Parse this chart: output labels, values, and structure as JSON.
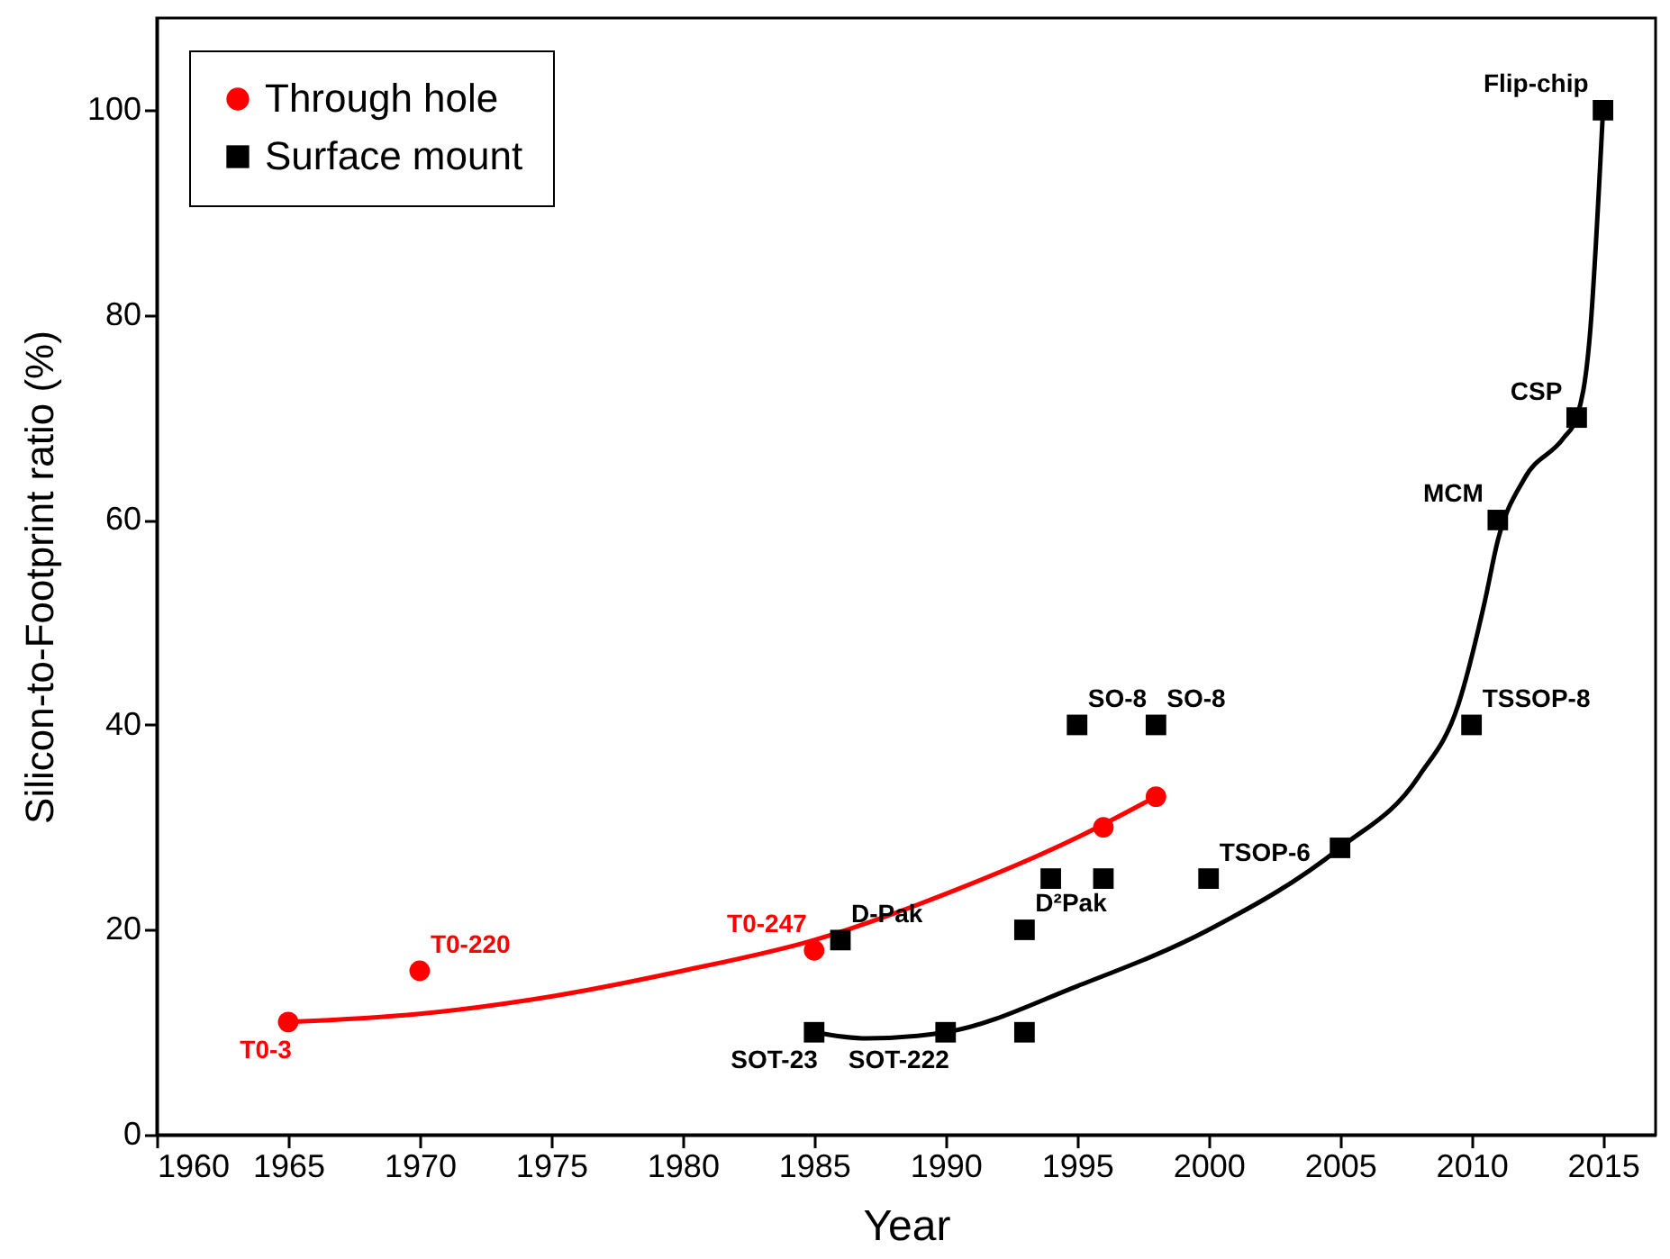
{
  "chart_data": {
    "type": "scatter",
    "xlabel": "Year",
    "ylabel": "Silicon-to-Footprint ratio (%)",
    "xlim": [
      1960,
      2017
    ],
    "xticks": [
      1960,
      1965,
      1970,
      1975,
      1980,
      1985,
      1990,
      1995,
      2000,
      2005,
      2010,
      2015
    ],
    "ylim": [
      0,
      109
    ],
    "yticks": [
      0,
      20,
      40,
      60,
      80,
      100
    ],
    "grid": false,
    "legend": "top left",
    "series": [
      {
        "name": "Through hole",
        "marker": "circle",
        "color": "#ff0000",
        "x": [
          1965,
          1970,
          1985,
          1996,
          1998
        ],
        "values": [
          11,
          16,
          18,
          30,
          33
        ]
      },
      {
        "name": "Surface mount",
        "marker": "square",
        "color": "#000000",
        "x": [
          1985,
          1986,
          1990,
          1993,
          1993,
          1994,
          1995,
          1996,
          1998,
          2000,
          2005,
          2010,
          2011,
          2014,
          2015
        ],
        "values": [
          10,
          19,
          10,
          20,
          10,
          25,
          40,
          25,
          40,
          25,
          28,
          40,
          60,
          70,
          100
        ]
      },
      {
        "type": "line",
        "marker": "none",
        "color": "#ff0000",
        "x": [
          1965,
          1970,
          1975,
          1980,
          1985,
          1990,
          1995,
          1998
        ],
        "values": [
          11,
          11.8,
          13.5,
          16,
          19,
          23.5,
          29,
          33
        ]
      },
      {
        "type": "line",
        "marker": "none",
        "color": "#000000",
        "x": [
          1985,
          1987,
          1990,
          1995,
          2000,
          2005,
          2008,
          2009.5,
          2010.5,
          2011,
          2012,
          2013.5,
          2014,
          2014.5,
          2015
        ],
        "values": [
          10,
          9.4,
          10,
          14.5,
          20,
          28,
          35,
          42,
          52,
          58,
          64,
          68,
          70,
          78,
          100
        ]
      }
    ],
    "annotations": [
      {
        "text": "T0-3",
        "x": 1965,
        "y": 11
      },
      {
        "text": "T0-220",
        "x": 1970,
        "y": 16
      },
      {
        "text": "T0-247",
        "x": 1985,
        "y": 18
      },
      {
        "text": "D-Pak",
        "x": 1986,
        "y": 19
      },
      {
        "text": "SOT-23",
        "x": 1985,
        "y": 10
      },
      {
        "text": "SOT-222",
        "x": 1990,
        "y": 10
      },
      {
        "text": "D²Pak",
        "x": 1993,
        "y": 20
      },
      {
        "text": "SO-8",
        "x": 1995,
        "y": 40
      },
      {
        "text": "SO-8",
        "x": 1998,
        "y": 40
      },
      {
        "text": "TSOP-6",
        "x": 2000,
        "y": 25
      },
      {
        "text": "TSSOP-8",
        "x": 2010,
        "y": 40
      },
      {
        "text": "MCM",
        "x": 2011,
        "y": 60
      },
      {
        "text": "CSP",
        "x": 2014,
        "y": 70
      },
      {
        "text": "Flip-chip",
        "x": 2015,
        "y": 100
      }
    ]
  }
}
